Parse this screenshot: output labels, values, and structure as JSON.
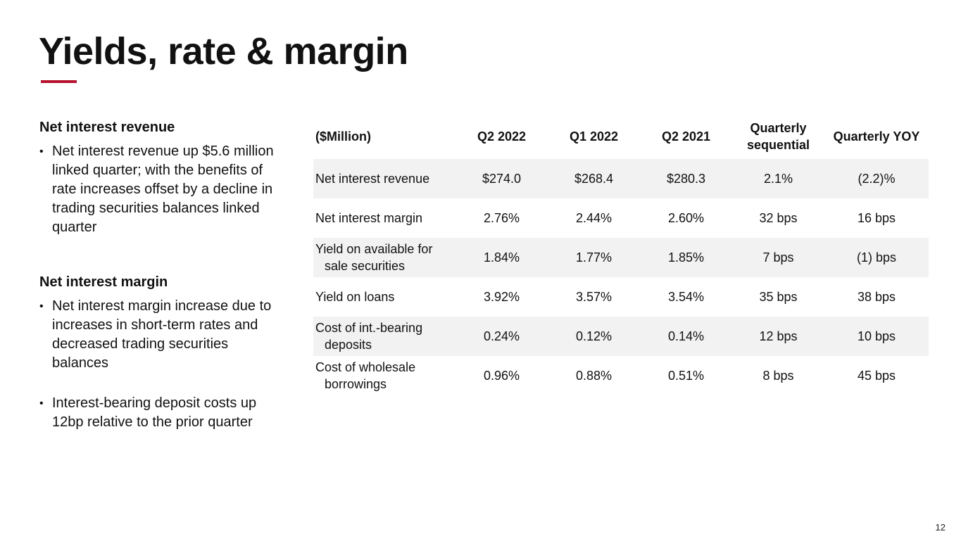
{
  "slide": {
    "title": "Yields, rate & margin",
    "page_number": "12"
  },
  "left_panel": {
    "sections": [
      {
        "heading": "Net interest revenue",
        "bullets": [
          "Net interest revenue up $5.6 million linked quarter; with the benefits of rate increases offset by a decline in trading securities balances linked quarter"
        ]
      },
      {
        "heading": "Net interest margin",
        "bullets": [
          "Net interest margin increase due to increases in short-term rates and decreased trading securities balances",
          "Interest-bearing deposit costs up 12bp relative to the prior quarter"
        ]
      }
    ]
  },
  "table": {
    "headers": [
      "($Million)",
      "Q2 2022",
      "Q1 2022",
      "Q2 2021",
      "Quarterly sequential",
      "Quarterly YOY"
    ],
    "rows": [
      {
        "label_line1": "Net interest revenue",
        "label_line2": "",
        "values": [
          "$274.0",
          "$268.4",
          "$280.3",
          "2.1%",
          "(2.2)%"
        ]
      },
      {
        "label_line1": "Net interest margin",
        "label_line2": "",
        "values": [
          "2.76%",
          "2.44%",
          "2.60%",
          "32 bps",
          "16 bps"
        ]
      },
      {
        "label_line1": "Yield on available for",
        "label_line2": "sale securities",
        "values": [
          "1.84%",
          "1.77%",
          "1.85%",
          "7 bps",
          "(1) bps"
        ]
      },
      {
        "label_line1": "Yield on loans",
        "label_line2": "",
        "values": [
          "3.92%",
          "3.57%",
          "3.54%",
          "35 bps",
          "38 bps"
        ]
      },
      {
        "label_line1": "Cost of int.-bearing",
        "label_line2": "deposits",
        "values": [
          "0.24%",
          "0.12%",
          "0.14%",
          "12 bps",
          "10 bps"
        ]
      },
      {
        "label_line1": "Cost of wholesale",
        "label_line2": "borrowings",
        "values": [
          "0.96%",
          "0.88%",
          "0.51%",
          "8 bps",
          "45 bps"
        ]
      }
    ]
  },
  "colors": {
    "accent": "#b5122e",
    "row_shade": "#f2f2f2"
  }
}
